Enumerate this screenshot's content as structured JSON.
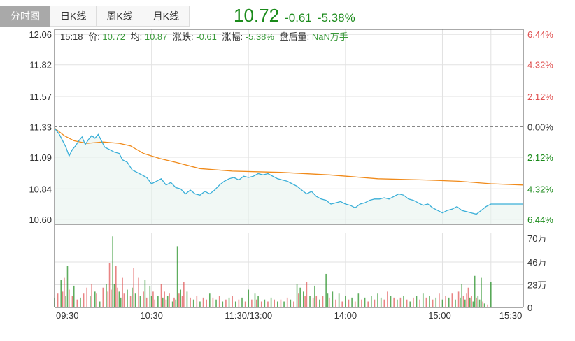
{
  "tabs": [
    "分时图",
    "日K线",
    "周K线",
    "月K线"
  ],
  "quote": {
    "price": "10.72",
    "change": "-0.61",
    "change_pct": "-5.38%"
  },
  "info": {
    "time": "15:18",
    "price_label": "价:",
    "price": "10.72",
    "avg_label": "均:",
    "avg": "10.87",
    "change_label": "涨跌:",
    "change": "-0.61",
    "pct_label": "涨幅:",
    "pct": "-5.38%",
    "after_label": "盘后量:",
    "after": "NaN万手"
  },
  "colors": {
    "up": "#e05050",
    "down": "#1a8a1a",
    "price_line": "#3aafd8",
    "avg_line": "#f08a1a",
    "grid": "#e2e2e2"
  },
  "chart_data": {
    "type": "line",
    "prev_close": 11.33,
    "price_ticks": [
      "12.06",
      "11.82",
      "11.57",
      "11.33",
      "11.09",
      "10.84",
      "10.60"
    ],
    "pct_ticks": [
      "6.44%",
      "4.32%",
      "2.12%",
      "0.00%",
      "2.12%",
      "4.32%",
      "6.44%"
    ],
    "vol_ticks": [
      "70万",
      "46万",
      "23万",
      "0"
    ],
    "x_ticks": [
      "09:30",
      "10:30",
      "11:30/13:00",
      "14:00",
      "15:00",
      "15:30"
    ],
    "ylim": [
      10.56,
      12.1
    ],
    "vol_max": 75,
    "minutes": 270,
    "series": [
      {
        "name": "价",
        "values": [
          [
            0,
            11.32
          ],
          [
            3,
            11.27
          ],
          [
            5,
            11.22
          ],
          [
            7,
            11.17
          ],
          [
            9,
            11.1
          ],
          [
            11,
            11.15
          ],
          [
            13,
            11.18
          ],
          [
            15,
            11.22
          ],
          [
            17,
            11.25
          ],
          [
            19,
            11.19
          ],
          [
            21,
            11.23
          ],
          [
            23,
            11.26
          ],
          [
            25,
            11.24
          ],
          [
            27,
            11.27
          ],
          [
            29,
            11.22
          ],
          [
            31,
            11.17
          ],
          [
            34,
            11.15
          ],
          [
            37,
            11.13
          ],
          [
            40,
            11.12
          ],
          [
            42,
            11.07
          ],
          [
            45,
            11.05
          ],
          [
            48,
            10.99
          ],
          [
            51,
            10.97
          ],
          [
            54,
            10.95
          ],
          [
            57,
            10.93
          ],
          [
            60,
            10.88
          ],
          [
            63,
            10.9
          ],
          [
            66,
            10.92
          ],
          [
            69,
            10.87
          ],
          [
            72,
            10.89
          ],
          [
            75,
            10.85
          ],
          [
            78,
            10.84
          ],
          [
            81,
            10.8
          ],
          [
            84,
            10.83
          ],
          [
            87,
            10.8
          ],
          [
            90,
            10.79
          ],
          [
            93,
            10.82
          ],
          [
            96,
            10.8
          ],
          [
            99,
            10.83
          ],
          [
            102,
            10.87
          ],
          [
            105,
            10.9
          ],
          [
            108,
            10.92
          ],
          [
            111,
            10.93
          ],
          [
            114,
            10.91
          ],
          [
            117,
            10.94
          ],
          [
            120,
            10.93
          ],
          [
            123,
            10.94
          ],
          [
            126,
            10.96
          ],
          [
            129,
            10.95
          ],
          [
            132,
            10.96
          ],
          [
            135,
            10.94
          ],
          [
            138,
            10.92
          ],
          [
            141,
            10.91
          ],
          [
            144,
            10.9
          ],
          [
            147,
            10.88
          ],
          [
            150,
            10.86
          ],
          [
            153,
            10.83
          ],
          [
            156,
            10.8
          ],
          [
            159,
            10.82
          ],
          [
            162,
            10.78
          ],
          [
            165,
            10.76
          ],
          [
            168,
            10.75
          ],
          [
            171,
            10.72
          ],
          [
            174,
            10.73
          ],
          [
            177,
            10.74
          ],
          [
            180,
            10.72
          ],
          [
            183,
            10.71
          ],
          [
            186,
            10.69
          ],
          [
            189,
            10.72
          ],
          [
            192,
            10.73
          ],
          [
            195,
            10.75
          ],
          [
            198,
            10.76
          ],
          [
            201,
            10.76
          ],
          [
            204,
            10.77
          ],
          [
            207,
            10.76
          ],
          [
            210,
            10.78
          ],
          [
            213,
            10.8
          ],
          [
            216,
            10.79
          ],
          [
            219,
            10.76
          ],
          [
            222,
            10.75
          ],
          [
            225,
            10.73
          ],
          [
            228,
            10.71
          ],
          [
            231,
            10.72
          ],
          [
            234,
            10.69
          ],
          [
            237,
            10.67
          ],
          [
            240,
            10.65
          ],
          [
            243,
            10.67
          ],
          [
            246,
            10.68
          ],
          [
            249,
            10.7
          ],
          [
            252,
            10.67
          ],
          [
            255,
            10.66
          ],
          [
            258,
            10.65
          ],
          [
            261,
            10.64
          ],
          [
            264,
            10.67
          ],
          [
            267,
            10.7
          ],
          [
            270,
            10.72
          ],
          [
            278,
            10.72
          ],
          [
            290,
            10.72
          ]
        ]
      },
      {
        "name": "均",
        "values": [
          [
            0,
            11.32
          ],
          [
            6,
            11.26
          ],
          [
            12,
            11.22
          ],
          [
            20,
            11.2
          ],
          [
            30,
            11.21
          ],
          [
            40,
            11.2
          ],
          [
            47,
            11.18
          ],
          [
            55,
            11.12
          ],
          [
            65,
            11.08
          ],
          [
            75,
            11.05
          ],
          [
            90,
            11.0
          ],
          [
            110,
            10.98
          ],
          [
            140,
            10.97
          ],
          [
            170,
            10.95
          ],
          [
            200,
            10.92
          ],
          [
            230,
            10.91
          ],
          [
            250,
            10.9
          ],
          [
            270,
            10.88
          ],
          [
            290,
            10.87
          ]
        ]
      }
    ],
    "volume": [
      [
        0,
        10,
        0
      ],
      [
        2,
        14,
        1
      ],
      [
        4,
        28,
        0
      ],
      [
        5,
        16,
        1
      ],
      [
        6,
        30,
        1
      ],
      [
        7,
        12,
        0
      ],
      [
        8,
        42,
        0
      ],
      [
        9,
        18,
        1
      ],
      [
        11,
        12,
        1
      ],
      [
        12,
        22,
        0
      ],
      [
        14,
        8,
        1
      ],
      [
        16,
        10,
        0
      ],
      [
        18,
        14,
        1
      ],
      [
        20,
        20,
        1
      ],
      [
        22,
        12,
        0
      ],
      [
        23,
        24,
        1
      ],
      [
        25,
        16,
        0
      ],
      [
        26,
        14,
        1
      ],
      [
        28,
        6,
        0
      ],
      [
        30,
        20,
        1
      ],
      [
        32,
        24,
        0
      ],
      [
        33,
        16,
        1
      ],
      [
        34,
        45,
        1
      ],
      [
        35,
        18,
        1
      ],
      [
        36,
        72,
        0
      ],
      [
        37,
        24,
        0
      ],
      [
        38,
        42,
        1
      ],
      [
        39,
        20,
        1
      ],
      [
        40,
        16,
        0
      ],
      [
        41,
        10,
        0
      ],
      [
        42,
        30,
        1
      ],
      [
        43,
        14,
        1
      ],
      [
        45,
        18,
        0
      ],
      [
        47,
        12,
        1
      ],
      [
        48,
        20,
        0
      ],
      [
        49,
        40,
        1
      ],
      [
        50,
        14,
        0
      ],
      [
        52,
        30,
        1
      ],
      [
        53,
        12,
        0
      ],
      [
        55,
        16,
        1
      ],
      [
        56,
        28,
        0
      ],
      [
        57,
        10,
        1
      ],
      [
        59,
        22,
        0
      ],
      [
        60,
        12,
        0
      ],
      [
        61,
        16,
        1
      ],
      [
        62,
        8,
        1
      ],
      [
        64,
        12,
        0
      ],
      [
        66,
        24,
        1
      ],
      [
        67,
        10,
        0
      ],
      [
        68,
        16,
        1
      ],
      [
        69,
        8,
        1
      ],
      [
        70,
        12,
        0
      ],
      [
        71,
        14,
        1
      ],
      [
        73,
        6,
        0
      ],
      [
        74,
        10,
        1
      ],
      [
        75,
        8,
        0
      ],
      [
        76,
        62,
        0
      ],
      [
        77,
        14,
        1
      ],
      [
        78,
        18,
        0
      ],
      [
        79,
        12,
        1
      ],
      [
        80,
        26,
        1
      ],
      [
        82,
        16,
        0
      ],
      [
        84,
        10,
        1
      ],
      [
        86,
        8,
        0
      ],
      [
        88,
        12,
        1
      ],
      [
        90,
        6,
        0
      ],
      [
        92,
        10,
        1
      ],
      [
        94,
        8,
        1
      ],
      [
        96,
        14,
        0
      ],
      [
        98,
        10,
        1
      ],
      [
        100,
        8,
        0
      ],
      [
        102,
        12,
        1
      ],
      [
        104,
        6,
        0
      ],
      [
        106,
        8,
        1
      ],
      [
        108,
        10,
        0
      ],
      [
        110,
        12,
        1
      ],
      [
        112,
        6,
        0
      ],
      [
        114,
        8,
        1
      ],
      [
        116,
        10,
        0
      ],
      [
        118,
        6,
        1
      ],
      [
        120,
        18,
        0
      ],
      [
        122,
        8,
        1
      ],
      [
        124,
        14,
        0
      ],
      [
        125,
        8,
        1
      ],
      [
        126,
        12,
        0
      ],
      [
        128,
        6,
        1
      ],
      [
        130,
        8,
        0
      ],
      [
        132,
        6,
        1
      ],
      [
        134,
        10,
        0
      ],
      [
        136,
        8,
        1
      ],
      [
        138,
        6,
        0
      ],
      [
        140,
        8,
        1
      ],
      [
        142,
        6,
        0
      ],
      [
        144,
        10,
        1
      ],
      [
        146,
        8,
        0
      ],
      [
        148,
        6,
        1
      ],
      [
        150,
        24,
        0
      ],
      [
        151,
        14,
        1
      ],
      [
        152,
        20,
        0
      ],
      [
        154,
        16,
        0
      ],
      [
        155,
        12,
        1
      ],
      [
        156,
        26,
        1
      ],
      [
        158,
        12,
        0
      ],
      [
        160,
        10,
        1
      ],
      [
        161,
        22,
        0
      ],
      [
        162,
        12,
        1
      ],
      [
        164,
        8,
        0
      ],
      [
        166,
        12,
        1
      ],
      [
        168,
        34,
        0
      ],
      [
        169,
        14,
        0
      ],
      [
        170,
        10,
        1
      ],
      [
        172,
        16,
        0
      ],
      [
        174,
        8,
        1
      ],
      [
        176,
        14,
        0
      ],
      [
        178,
        6,
        1
      ],
      [
        180,
        12,
        0
      ],
      [
        182,
        8,
        1
      ],
      [
        184,
        10,
        0
      ],
      [
        186,
        6,
        1
      ],
      [
        188,
        14,
        0
      ],
      [
        190,
        8,
        1
      ],
      [
        192,
        10,
        0
      ],
      [
        194,
        6,
        1
      ],
      [
        196,
        12,
        0
      ],
      [
        198,
        8,
        1
      ],
      [
        200,
        14,
        0
      ],
      [
        202,
        10,
        0
      ],
      [
        204,
        8,
        1
      ],
      [
        206,
        16,
        1
      ],
      [
        208,
        12,
        0
      ],
      [
        210,
        10,
        1
      ],
      [
        212,
        8,
        0
      ],
      [
        214,
        10,
        1
      ],
      [
        216,
        12,
        0
      ],
      [
        218,
        8,
        1
      ],
      [
        220,
        6,
        0
      ],
      [
        222,
        10,
        1
      ],
      [
        224,
        12,
        0
      ],
      [
        226,
        8,
        1
      ],
      [
        228,
        14,
        0
      ],
      [
        230,
        10,
        1
      ],
      [
        232,
        12,
        0
      ],
      [
        234,
        8,
        1
      ],
      [
        236,
        10,
        0
      ],
      [
        238,
        14,
        1
      ],
      [
        240,
        8,
        0
      ],
      [
        242,
        12,
        1
      ],
      [
        244,
        10,
        0
      ],
      [
        246,
        14,
        1
      ],
      [
        248,
        8,
        0
      ],
      [
        250,
        16,
        1
      ],
      [
        251,
        10,
        0
      ],
      [
        252,
        24,
        0
      ],
      [
        253,
        12,
        1
      ],
      [
        254,
        8,
        0
      ],
      [
        255,
        14,
        1
      ],
      [
        256,
        20,
        1
      ],
      [
        257,
        10,
        0
      ],
      [
        258,
        12,
        1
      ],
      [
        259,
        6,
        0
      ],
      [
        260,
        32,
        0
      ],
      [
        261,
        10,
        1
      ],
      [
        262,
        12,
        0
      ],
      [
        263,
        8,
        0
      ],
      [
        264,
        30,
        0
      ],
      [
        265,
        6,
        1
      ],
      [
        266,
        4,
        0
      ],
      [
        268,
        3,
        1
      ],
      [
        270,
        26,
        0
      ]
    ]
  }
}
